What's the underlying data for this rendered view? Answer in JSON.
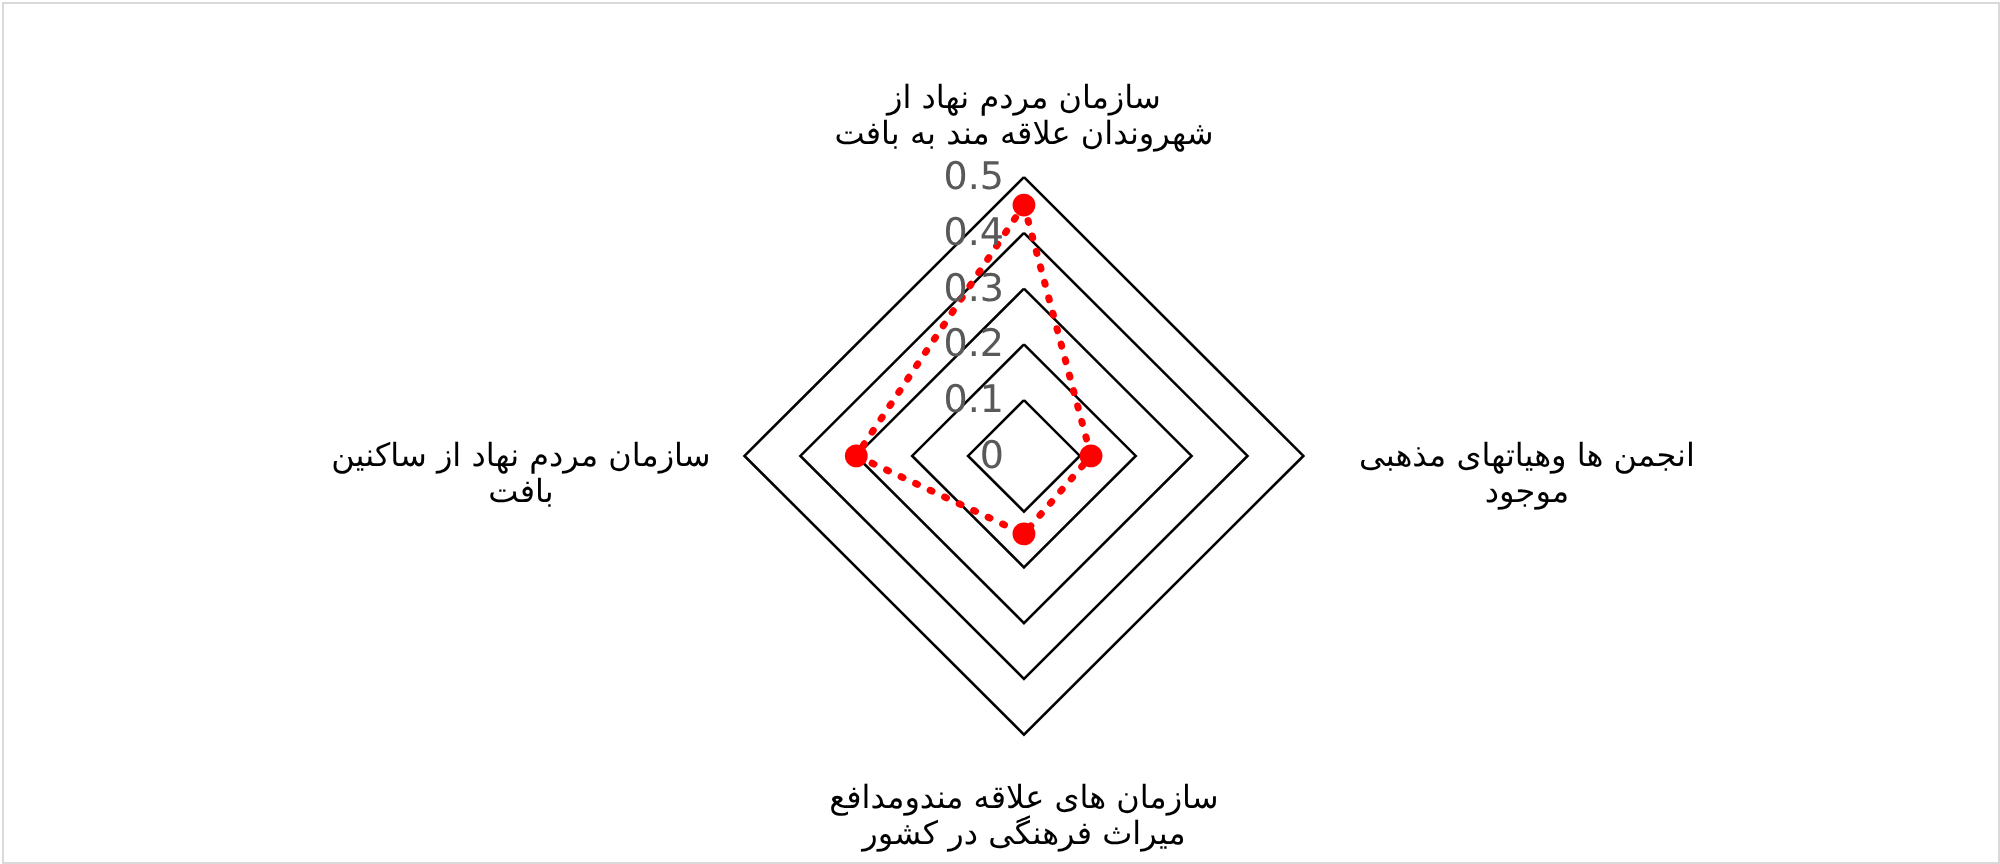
{
  "chart_data": {
    "type": "radar",
    "categories": [
      "سازمان مردم نهاد از\nشهروندان علاقه مند به بافت",
      "انجمن ها وهیاتهای مذهبی\nموجود",
      "سازمان های علاقه مندومدافع\nمیراث فرهنگی در کشور",
      "سازمان مردم نهاد از ساکنین\nبافت"
    ],
    "series": [
      {
        "color": "#ff0000",
        "values": [
          0.45,
          0.12,
          0.14,
          0.3
        ]
      }
    ],
    "ylim": [
      0,
      0.5
    ],
    "yticks": [
      0,
      0.1,
      0.2,
      0.3,
      0.4,
      0.5
    ],
    "grid": true,
    "marker": "circle",
    "line_style": "dotted"
  }
}
